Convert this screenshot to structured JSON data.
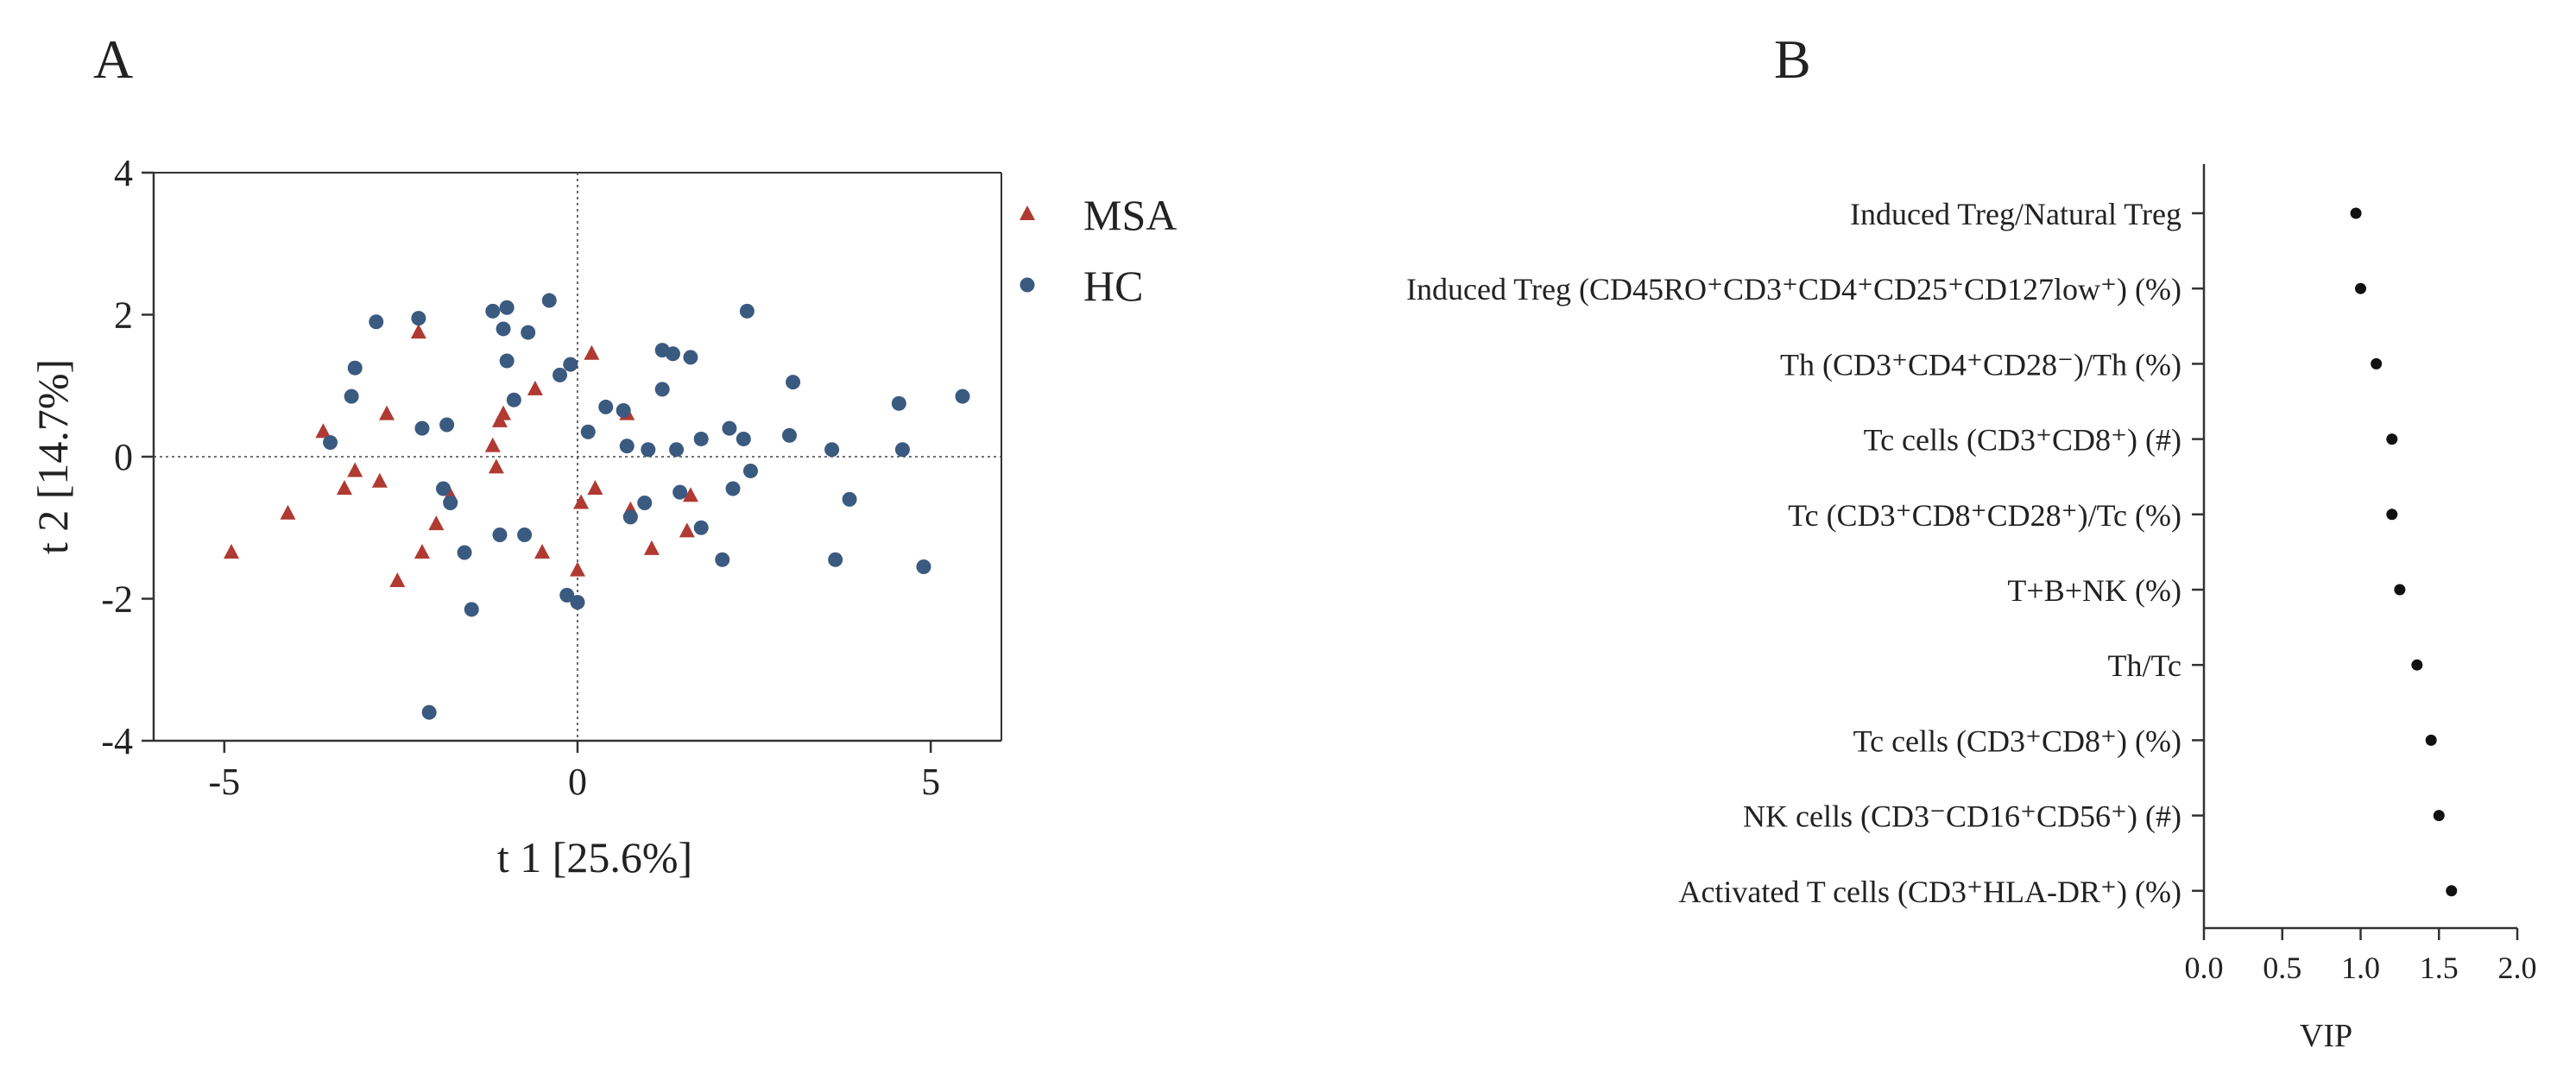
{
  "panels": {
    "a_label": "A",
    "b_label": "B"
  },
  "colors": {
    "msa": "#b03a32",
    "hc": "#3b5a80",
    "axis": "#333333",
    "vip_dot": "#111111"
  },
  "chart_data": [
    {
      "type": "scatter",
      "xlabel": "t 1 [25.6%]",
      "ylabel": "t 2 [14.7%]",
      "xlim": [
        -6,
        6
      ],
      "ylim": [
        -4,
        4
      ],
      "xticks": [
        -5,
        0,
        5
      ],
      "yticks": [
        -4,
        -2,
        0,
        2,
        4
      ],
      "reference_lines": "dotted lines at x=0 and y=0",
      "legend_position": "right",
      "series": [
        {
          "name": "MSA",
          "marker": "triangle",
          "points": [
            [
              -4.9,
              -1.35
            ],
            [
              -4.1,
              -0.8
            ],
            [
              -3.6,
              0.35
            ],
            [
              -3.3,
              -0.45
            ],
            [
              -3.15,
              -0.2
            ],
            [
              -2.8,
              -0.35
            ],
            [
              -2.7,
              0.6
            ],
            [
              -2.55,
              -1.75
            ],
            [
              -2.25,
              1.75
            ],
            [
              -2.2,
              -1.35
            ],
            [
              -2.0,
              -0.95
            ],
            [
              -1.8,
              -0.55
            ],
            [
              -1.2,
              0.15
            ],
            [
              -1.15,
              -0.15
            ],
            [
              -1.1,
              0.5
            ],
            [
              -1.05,
              0.6
            ],
            [
              -0.6,
              0.95
            ],
            [
              -0.5,
              -1.35
            ],
            [
              0.0,
              -1.6
            ],
            [
              0.05,
              -0.65
            ],
            [
              0.2,
              1.45
            ],
            [
              0.25,
              -0.45
            ],
            [
              0.7,
              0.6
            ],
            [
              0.75,
              -0.75
            ],
            [
              1.05,
              -1.3
            ],
            [
              1.55,
              -1.05
            ],
            [
              1.6,
              -0.55
            ]
          ]
        },
        {
          "name": "HC",
          "marker": "circle",
          "points": [
            [
              -3.5,
              0.2
            ],
            [
              -3.15,
              1.25
            ],
            [
              -3.2,
              0.85
            ],
            [
              -2.85,
              1.9
            ],
            [
              -2.25,
              1.95
            ],
            [
              -2.2,
              0.4
            ],
            [
              -2.1,
              -3.6
            ],
            [
              -1.9,
              -0.45
            ],
            [
              -1.85,
              0.45
            ],
            [
              -1.8,
              -0.65
            ],
            [
              -1.6,
              -1.35
            ],
            [
              -1.5,
              -2.15
            ],
            [
              -1.2,
              2.05
            ],
            [
              -1.1,
              -1.1
            ],
            [
              -1.05,
              1.8
            ],
            [
              -1.0,
              2.1
            ],
            [
              -1.0,
              1.35
            ],
            [
              -0.9,
              0.8
            ],
            [
              -0.75,
              -1.1
            ],
            [
              -0.7,
              1.75
            ],
            [
              -0.4,
              2.2
            ],
            [
              -0.25,
              1.15
            ],
            [
              -0.1,
              1.3
            ],
            [
              -0.15,
              -1.95
            ],
            [
              0.0,
              -2.05
            ],
            [
              0.15,
              0.35
            ],
            [
              0.4,
              0.7
            ],
            [
              0.65,
              0.65
            ],
            [
              0.75,
              -0.85
            ],
            [
              0.7,
              0.15
            ],
            [
              0.95,
              -0.65
            ],
            [
              1.0,
              0.1
            ],
            [
              1.2,
              0.95
            ],
            [
              1.2,
              1.5
            ],
            [
              1.35,
              1.45
            ],
            [
              1.4,
              0.1
            ],
            [
              1.45,
              -0.5
            ],
            [
              1.6,
              1.4
            ],
            [
              1.75,
              -1.0
            ],
            [
              1.75,
              0.25
            ],
            [
              2.05,
              -1.45
            ],
            [
              2.15,
              0.4
            ],
            [
              2.2,
              -0.45
            ],
            [
              2.35,
              0.25
            ],
            [
              2.4,
              2.05
            ],
            [
              2.45,
              -0.2
            ],
            [
              3.0,
              0.3
            ],
            [
              3.05,
              1.05
            ],
            [
              3.6,
              0.1
            ],
            [
              3.65,
              -1.45
            ],
            [
              3.85,
              -0.6
            ],
            [
              4.55,
              0.75
            ],
            [
              4.6,
              0.1
            ],
            [
              4.9,
              -1.55
            ],
            [
              5.45,
              0.85
            ]
          ]
        }
      ]
    },
    {
      "type": "scatter",
      "orientation": "horizontal",
      "xlabel": "VIP",
      "ylabel": "",
      "xlim": [
        0.0,
        2.0
      ],
      "xticks": [
        "0.0",
        "0.5",
        "1.0",
        "1.5",
        "2.0"
      ],
      "categories": [
        "Induced Treg/Natural Treg",
        "Induced Treg  (CD45RO⁺CD3⁺CD4⁺CD25⁺CD127low⁺) (%)",
        "Th (CD3⁺CD4⁺CD28⁻)/Th (%)",
        "Tc cells (CD3⁺CD8⁺) (#)",
        "Tc (CD3⁺CD8⁺CD28⁺)/Tc (%)",
        "T+B+NK (%)",
        "Th/Tc",
        "Tc cells (CD3⁺CD8⁺) (%)",
        "NK cells (CD3⁻CD16⁺CD56⁺) (#)",
        "Activated T cells (CD3⁺HLA-DR⁺) (%)"
      ],
      "values": [
        0.97,
        1.0,
        1.1,
        1.2,
        1.2,
        1.25,
        1.36,
        1.45,
        1.5,
        1.58
      ]
    }
  ]
}
